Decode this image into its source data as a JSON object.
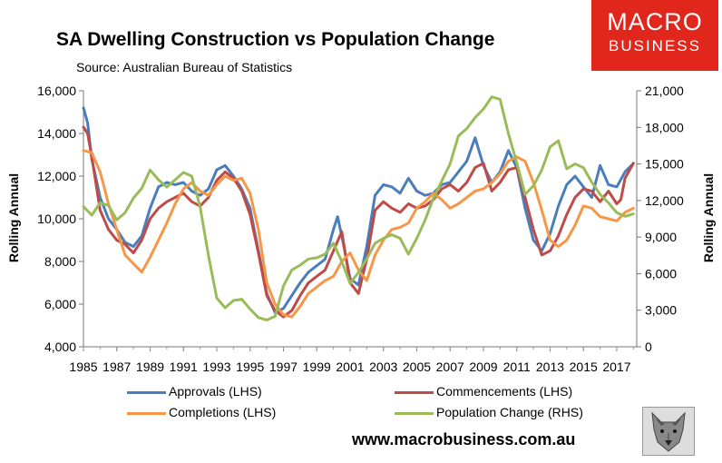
{
  "title": "SA Dwelling Construction vs Population Change",
  "subtitle": "Source: Australian Bureau of Statistics",
  "brand": {
    "line1": "MACRO",
    "line2": "BUSINESS",
    "color": "#e1261c"
  },
  "website": "www.macrobusiness.com.au",
  "chart_data": {
    "type": "line",
    "ylabel": "Rolling Annual",
    "y2label": "Rolling Annual",
    "ylim": [
      4000,
      16000
    ],
    "y2lim": [
      0,
      21000
    ],
    "yticks": [
      "4,000",
      "6,000",
      "8,000",
      "10,000",
      "12,000",
      "14,000",
      "16,000"
    ],
    "y2ticks": [
      "0",
      "3,000",
      "6,000",
      "9,000",
      "12,000",
      "15,000",
      "18,000",
      "21,000"
    ],
    "xlim": [
      1985,
      2018.2
    ],
    "xticks": [
      "1985",
      "1987",
      "1989",
      "1991",
      "1993",
      "1995",
      "1997",
      "1999",
      "2001",
      "2003",
      "2005",
      "2007",
      "2009",
      "2011",
      "2013",
      "2015",
      "2017"
    ],
    "grid": false,
    "legend": "bottom",
    "series": [
      {
        "name": "Approvals (LHS)",
        "axis": "left",
        "color": "#4a7ebb",
        "x": [
          1985,
          1985.25,
          1985.5,
          1986,
          1986.5,
          1987,
          1987.5,
          1988,
          1988.5,
          1989,
          1989.5,
          1990,
          1990.5,
          1991,
          1991.5,
          1992,
          1992.5,
          1993,
          1993.5,
          1994,
          1994.5,
          1995,
          1995.5,
          1996,
          1996.5,
          1997,
          1997.5,
          1998,
          1998.5,
          1999,
          1999.5,
          2000,
          2000.25,
          2000.5,
          2001,
          2001.5,
          2002,
          2002.5,
          2003,
          2003.5,
          2004,
          2004.5,
          2005,
          2005.5,
          2006,
          2006.5,
          2007,
          2007.5,
          2008,
          2008.5,
          2009,
          2009.5,
          2010,
          2010.5,
          2011,
          2011.5,
          2012,
          2012.5,
          2013,
          2013.5,
          2014,
          2014.5,
          2015,
          2015.5,
          2016,
          2016.5,
          2017,
          2017.5,
          2018
        ],
        "y": [
          15200,
          14500,
          12800,
          11000,
          10000,
          9500,
          8900,
          8700,
          9200,
          10500,
          11500,
          11700,
          11600,
          11700,
          11300,
          11100,
          11400,
          12300,
          12500,
          12000,
          11400,
          10500,
          8500,
          6500,
          5600,
          5800,
          6400,
          7000,
          7500,
          7800,
          8100,
          9500,
          10100,
          9200,
          7200,
          6900,
          8700,
          11100,
          11600,
          11500,
          11200,
          11900,
          11300,
          11100,
          11200,
          11600,
          11700,
          12200,
          12700,
          13800,
          12500,
          11700,
          12200,
          13200,
          12400,
          10500,
          9000,
          8500,
          9300,
          10600,
          11600,
          12000,
          11500,
          11000,
          12500,
          11600,
          11500,
          12200,
          12600
        ]
      },
      {
        "name": "Commencements (LHS)",
        "axis": "left",
        "color": "#be4b48",
        "x": [
          1985,
          1985.25,
          1985.5,
          1986,
          1986.5,
          1987,
          1987.5,
          1988,
          1988.5,
          1989,
          1989.5,
          1990,
          1990.5,
          1991,
          1991.5,
          1992,
          1992.5,
          1993,
          1993.5,
          1994,
          1994.5,
          1995,
          1995.5,
          1996,
          1996.5,
          1997,
          1997.5,
          1998,
          1998.5,
          1999,
          1999.5,
          2000,
          2000.5,
          2001,
          2001.5,
          2002,
          2002.5,
          2003,
          2003.5,
          2004,
          2004.5,
          2005,
          2005.5,
          2006,
          2006.5,
          2007,
          2007.5,
          2008,
          2008.5,
          2009,
          2009.5,
          2010,
          2010.5,
          2011,
          2011.5,
          2012,
          2012.5,
          2013,
          2013.5,
          2014,
          2014.5,
          2015,
          2015.5,
          2016,
          2016.5,
          2017,
          2017.25,
          2017.5,
          2018
        ],
        "y": [
          14300,
          14000,
          12900,
          10400,
          9500,
          9000,
          8800,
          8400,
          9000,
          10000,
          10500,
          10800,
          11000,
          11200,
          10800,
          10600,
          11000,
          11800,
          12200,
          11900,
          11300,
          10200,
          8400,
          6400,
          5700,
          5400,
          5700,
          6400,
          7000,
          7300,
          7600,
          8500,
          9400,
          7000,
          6500,
          8100,
          10400,
          10800,
          10500,
          10300,
          10700,
          10500,
          10600,
          10900,
          11400,
          11600,
          11300,
          11700,
          12400,
          12600,
          11300,
          11700,
          12300,
          12400,
          11000,
          9500,
          8300,
          8500,
          9200,
          10200,
          11000,
          11400,
          11300,
          10800,
          11300,
          10700,
          10900,
          11900,
          12600
        ]
      },
      {
        "name": "Completions (LHS)",
        "axis": "left",
        "color": "#f79646",
        "x": [
          1985,
          1985.5,
          1986,
          1986.5,
          1987,
          1987.5,
          1988,
          1988.5,
          1989,
          1989.5,
          1990,
          1990.5,
          1991,
          1991.5,
          1992,
          1992.5,
          1993,
          1993.5,
          1994,
          1994.5,
          1995,
          1995.5,
          1996,
          1996.5,
          1997,
          1997.5,
          1998,
          1998.5,
          1999,
          1999.5,
          2000,
          2000.5,
          2001,
          2001.5,
          2002,
          2002.5,
          2003,
          2003.5,
          2004,
          2004.5,
          2005,
          2005.5,
          2006,
          2006.5,
          2007,
          2007.5,
          2008,
          2008.5,
          2009,
          2009.5,
          2010,
          2010.5,
          2011,
          2011.5,
          2012,
          2012.5,
          2013,
          2013.5,
          2014,
          2014.5,
          2015,
          2015.5,
          2016,
          2016.5,
          2017,
          2017.5,
          2018
        ],
        "y": [
          13200,
          13100,
          12200,
          10700,
          9500,
          8300,
          7900,
          7500,
          8200,
          9000,
          9800,
          10700,
          11400,
          11700,
          11300,
          11100,
          11600,
          12000,
          11800,
          11900,
          11200,
          9500,
          7000,
          6000,
          5500,
          5400,
          5900,
          6500,
          6800,
          7100,
          7300,
          8000,
          8400,
          7600,
          7100,
          8300,
          9000,
          9500,
          9600,
          9800,
          10500,
          10800,
          11200,
          10900,
          10500,
          10700,
          11000,
          11300,
          11400,
          11700,
          12100,
          12700,
          12900,
          12700,
          11700,
          10400,
          9000,
          8700,
          9000,
          9700,
          10600,
          10500,
          10100,
          10000,
          9900,
          10300,
          10500
        ]
      },
      {
        "name": "Population Change (RHS)",
        "axis": "right",
        "color": "#9bbb59",
        "x": [
          1985,
          1985.5,
          1986,
          1986.5,
          1987,
          1987.5,
          1988,
          1988.5,
          1989,
          1989.5,
          1990,
          1990.5,
          1991,
          1991.5,
          1992,
          1992.5,
          1993,
          1993.5,
          1994,
          1994.5,
          1995,
          1995.5,
          1996,
          1996.5,
          1997,
          1997.5,
          1998,
          1998.5,
          1999,
          1999.5,
          2000,
          2000.5,
          2001,
          2001.5,
          2002,
          2002.5,
          2003,
          2003.5,
          2004,
          2004.5,
          2005,
          2005.5,
          2006,
          2006.5,
          2007,
          2007.5,
          2008,
          2008.5,
          2009,
          2009.5,
          2010,
          2010.5,
          2011,
          2011.5,
          2012,
          2012.5,
          2013,
          2013.5,
          2014,
          2014.5,
          2015,
          2015.5,
          2016,
          2016.5,
          2017,
          2017.5,
          2018
        ],
        "y": [
          11500,
          10800,
          11800,
          11600,
          10400,
          11000,
          12200,
          13000,
          14500,
          13700,
          13100,
          13700,
          14300,
          14000,
          11500,
          7500,
          4000,
          3200,
          3800,
          3900,
          3100,
          2400,
          2200,
          2500,
          5000,
          6300,
          6700,
          7200,
          7300,
          7600,
          8500,
          7000,
          5200,
          6100,
          7200,
          8500,
          8900,
          9200,
          8900,
          7600,
          8900,
          10400,
          12200,
          13600,
          15000,
          17300,
          17900,
          18800,
          19500,
          20500,
          20300,
          17500,
          15100,
          12500,
          13200,
          14500,
          16400,
          16900,
          14600,
          15000,
          14700,
          13500,
          12500,
          11800,
          11000,
          10700,
          10900
        ]
      }
    ]
  }
}
